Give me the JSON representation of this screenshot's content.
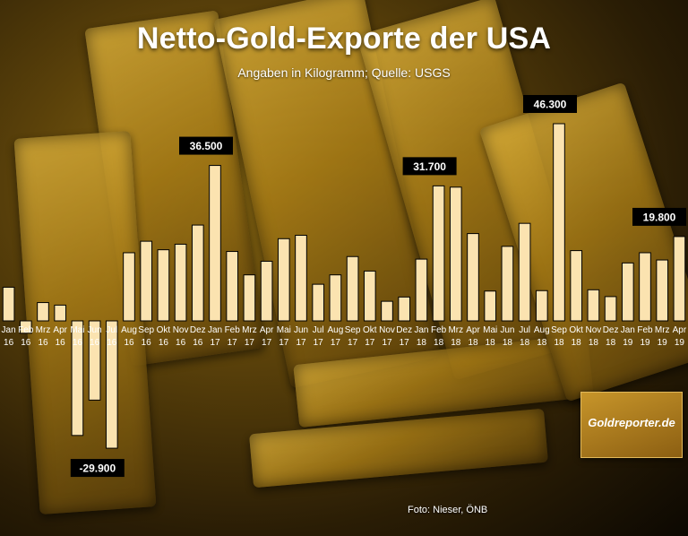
{
  "header": {
    "title": "Netto-Gold-Exporte der USA",
    "subtitle": "Angaben in Kilogramm; Quelle: USGS"
  },
  "footer": {
    "credit": "Foto: Nieser, ÖNB",
    "logo_text": "Goldreporter.de"
  },
  "colors": {
    "bar_fill": "#FBE3B0",
    "bar_stroke": "#000000",
    "label_box": "#000000",
    "label_text": "#FFFFFF"
  },
  "chart_data": {
    "type": "bar",
    "title": "Netto-Gold-Exporte der USA",
    "subtitle": "Angaben in Kilogramm; Quelle: USGS",
    "xlabel": "",
    "ylabel": "",
    "ylim": [
      -31000,
      48000
    ],
    "grid": false,
    "legend": "none",
    "categories": [
      [
        "Jan",
        "16"
      ],
      [
        "Feb",
        "16"
      ],
      [
        "Mrz",
        "16"
      ],
      [
        "Apr",
        "16"
      ],
      [
        "Mai",
        "16"
      ],
      [
        "Jun",
        "16"
      ],
      [
        "Jul",
        "16"
      ],
      [
        "Aug",
        "16"
      ],
      [
        "Sep",
        "16"
      ],
      [
        "Okt",
        "16"
      ],
      [
        "Nov",
        "16"
      ],
      [
        "Dez",
        "16"
      ],
      [
        "Jan",
        "17"
      ],
      [
        "Feb",
        "17"
      ],
      [
        "Mrz",
        "17"
      ],
      [
        "Apr",
        "17"
      ],
      [
        "Mai",
        "17"
      ],
      [
        "Jun",
        "17"
      ],
      [
        "Jul",
        "17"
      ],
      [
        "Aug",
        "17"
      ],
      [
        "Sep",
        "17"
      ],
      [
        "Okt",
        "17"
      ],
      [
        "Nov",
        "17"
      ],
      [
        "Dez",
        "17"
      ],
      [
        "Jan",
        "18"
      ],
      [
        "Feb",
        "18"
      ],
      [
        "Mrz",
        "18"
      ],
      [
        "Apr",
        "18"
      ],
      [
        "Mai",
        "18"
      ],
      [
        "Jun",
        "18"
      ],
      [
        "Jul",
        "18"
      ],
      [
        "Aug",
        "18"
      ],
      [
        "Sep",
        "18"
      ],
      [
        "Okt",
        "18"
      ],
      [
        "Nov",
        "18"
      ],
      [
        "Dez",
        "18"
      ],
      [
        "Jan",
        "19"
      ],
      [
        "Feb",
        "19"
      ],
      [
        "Mrz",
        "19"
      ],
      [
        "Apr",
        "19"
      ]
    ],
    "values": [
      7900,
      -2900,
      4300,
      3700,
      -26900,
      -18600,
      -29900,
      16000,
      18700,
      16700,
      18000,
      22500,
      36500,
      16300,
      10800,
      14000,
      19300,
      20100,
      8600,
      10800,
      15100,
      11700,
      4600,
      5600,
      14500,
      31700,
      31400,
      20500,
      7000,
      17500,
      22900,
      7100,
      46300,
      16500,
      7300,
      5700,
      13600,
      16000,
      14300,
      19800
    ],
    "annotations": [
      {
        "index": 6,
        "label": "-29.900"
      },
      {
        "index": 12,
        "label": "36.500"
      },
      {
        "index": 25,
        "label": "31.700"
      },
      {
        "index": 32,
        "label": "46.300"
      },
      {
        "index": 39,
        "label": "19.800"
      }
    ]
  }
}
